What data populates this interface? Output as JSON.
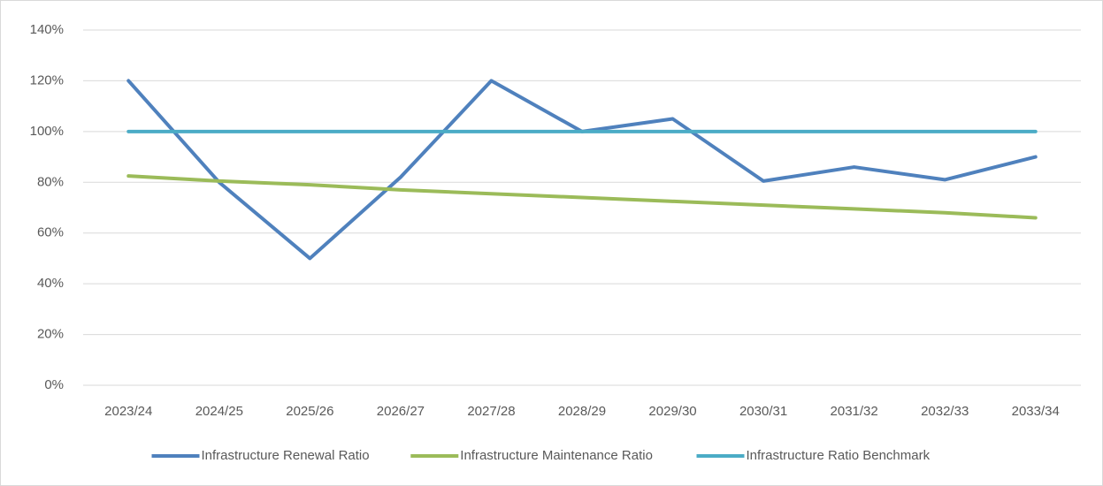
{
  "chart_data": {
    "type": "line",
    "categories": [
      "2023/24",
      "2024/25",
      "2025/26",
      "2026/27",
      "2027/28",
      "2028/29",
      "2029/30",
      "2030/31",
      "2031/32",
      "2032/33",
      "2033/34"
    ],
    "series": [
      {
        "name": "Infrastructure Renewal Ratio",
        "color": "#4f81bd",
        "values": [
          120,
          80,
          50,
          82,
          120,
          100,
          105,
          80.5,
          86,
          81,
          90
        ]
      },
      {
        "name": "Infrastructure Maintenance Ratio",
        "color": "#9bbb59",
        "values": [
          82.5,
          80.5,
          79,
          77,
          75.5,
          74,
          72.5,
          71,
          69.5,
          68,
          66
        ]
      },
      {
        "name": "Infrastructure Ratio Benchmark",
        "color": "#4bacc6",
        "values": [
          100,
          100,
          100,
          100,
          100,
          100,
          100,
          100,
          100,
          100,
          100
        ]
      }
    ],
    "ylim": [
      0,
      140
    ],
    "yticks": [
      {
        "value": 0,
        "label": "0%"
      },
      {
        "value": 20,
        "label": "20%"
      },
      {
        "value": 40,
        "label": "40%"
      },
      {
        "value": 60,
        "label": "60%"
      },
      {
        "value": 80,
        "label": "80%"
      },
      {
        "value": 100,
        "label": "100%"
      },
      {
        "value": 120,
        "label": "120%"
      },
      {
        "value": 140,
        "label": "140%"
      }
    ],
    "grid": true,
    "legend": "bottom"
  }
}
